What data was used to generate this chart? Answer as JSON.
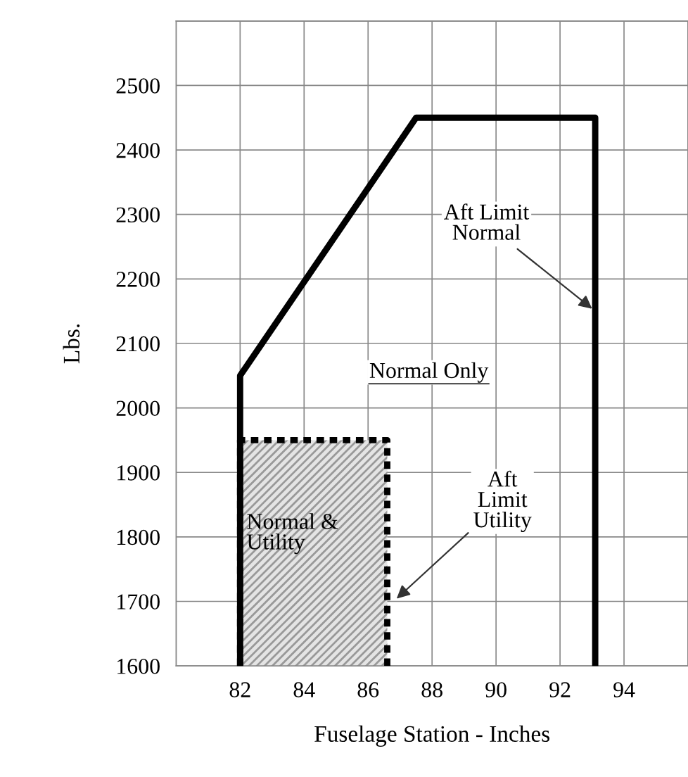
{
  "chart_data": {
    "type": "line",
    "xlabel": "Fuselage Station - Inches",
    "ylabel": "Lbs.",
    "xlim": [
      80,
      96
    ],
    "ylim": [
      1600,
      2600
    ],
    "xticks": [
      {
        "value": 80,
        "label": null
      },
      82,
      84,
      86,
      88,
      90,
      92,
      94,
      {
        "value": 96,
        "label": null
      }
    ],
    "yticks": [
      1600,
      1700,
      1800,
      1900,
      2000,
      2100,
      2200,
      2300,
      2400,
      2500,
      {
        "value": 2600,
        "label": null
      }
    ],
    "grid": true,
    "series": [
      {
        "color": "#000000",
        "line_style": "solid",
        "x": [
          82,
          82,
          87.5,
          93.1,
          93.1
        ],
        "values": [
          1600,
          2050,
          2450,
          2450,
          1600
        ]
      },
      {
        "type": "area",
        "color": "#000000",
        "line_style": "dashed",
        "x": [
          82,
          82,
          86.6,
          86.6
        ],
        "values": [
          1600,
          1950,
          1950,
          1600
        ]
      }
    ],
    "annotations": [
      {
        "text": "Aft Limit\nNormal",
        "x": 93.1,
        "y": 2150
      },
      {
        "text": "Aft\nLimit\nUtility",
        "x": 86.8,
        "y": 1700
      },
      "Normal Only",
      "Normal &\nUtility"
    ]
  }
}
